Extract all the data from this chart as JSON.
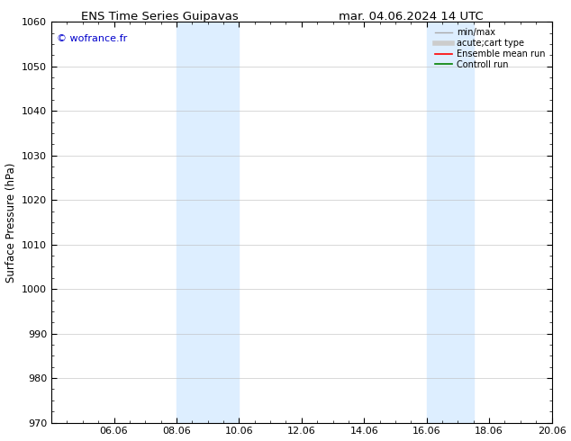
{
  "title_left": "ENS Time Series Guipavas",
  "title_right": "mar. 04.06.2024 14 UTC",
  "ylabel": "Surface Pressure (hPa)",
  "ylim": [
    970,
    1060
  ],
  "yticks": [
    970,
    980,
    990,
    1000,
    1010,
    1020,
    1030,
    1040,
    1050,
    1060
  ],
  "xmin": 4.0,
  "xmax": 20.0,
  "xtick_labels": [
    "06.06",
    "08.06",
    "10.06",
    "12.06",
    "14.06",
    "16.06",
    "18.06",
    "20.06"
  ],
  "xtick_positions": [
    6.0,
    8.0,
    10.0,
    12.0,
    14.0,
    16.0,
    18.0,
    20.0
  ],
  "shaded_bands": [
    {
      "x_start": 8.0,
      "x_end": 10.0
    },
    {
      "x_start": 16.0,
      "x_end": 17.5
    }
  ],
  "shaded_color": "#ddeeff",
  "watermark_text": "© wofrance.fr",
  "watermark_color": "#0000cc",
  "legend_items": [
    {
      "label": "min/max",
      "color": "#aaaaaa",
      "lw": 1.0
    },
    {
      "label": "acute;cart type",
      "color": "#cccccc",
      "lw": 4.0
    },
    {
      "label": "Ensemble mean run",
      "color": "#ff0000",
      "lw": 1.2
    },
    {
      "label": "Controll run",
      "color": "#008000",
      "lw": 1.2
    }
  ],
  "bg_color": "#ffffff",
  "grid_color": "#bbbbbb",
  "title_fontsize": 9.5,
  "ylabel_fontsize": 8.5,
  "tick_fontsize": 8,
  "watermark_fontsize": 8,
  "legend_fontsize": 7
}
